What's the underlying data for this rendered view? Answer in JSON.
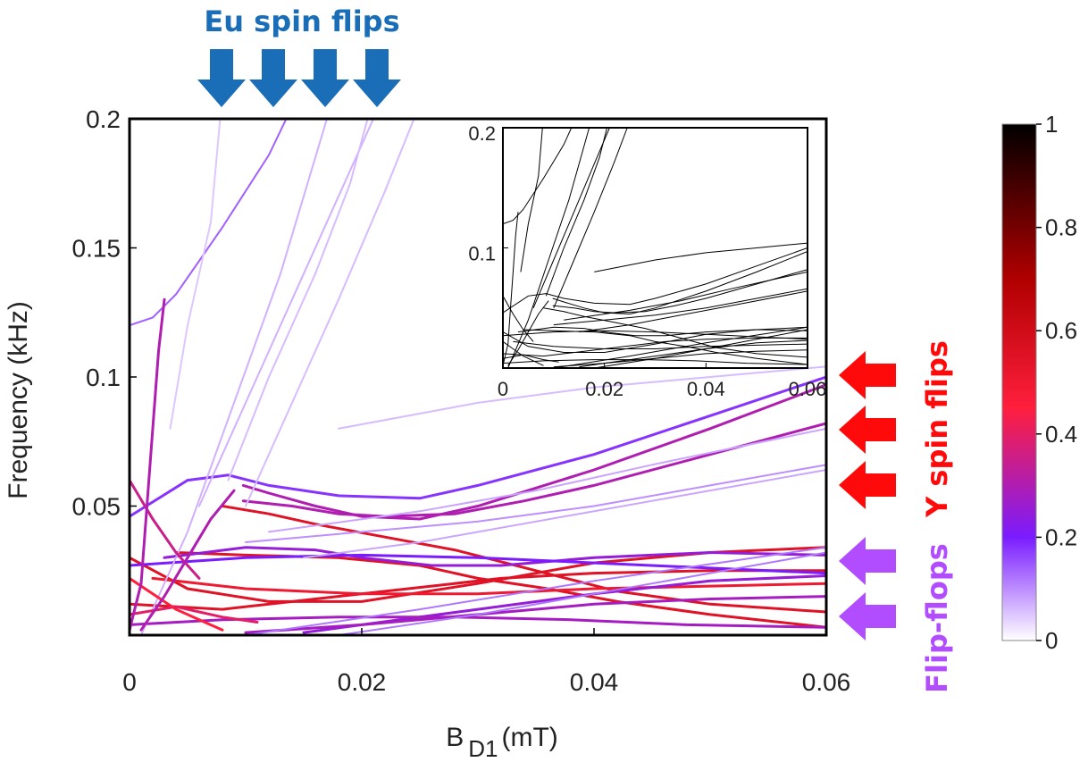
{
  "chart_data": {
    "type": "line",
    "xlabel": "B",
    "xlabel_sub": "D1",
    "xlabel_unit": "(mT)",
    "ylabel": "Frequency (kHz)",
    "xlim": [
      0,
      0.06
    ],
    "ylim": [
      0,
      0.2
    ],
    "x_ticks": [
      "0",
      "0.02",
      "0.04",
      "0.06"
    ],
    "y_ticks": [
      "0.05",
      "0.1",
      "0.15",
      "0.2"
    ],
    "colorbar": {
      "ticks": [
        "0",
        "0.2",
        "0.4",
        "0.6",
        "0.8",
        "1"
      ],
      "colors": [
        "#ffffff",
        "#7a1cff",
        "#ff1f3d",
        "#b00000",
        "#000000"
      ]
    },
    "annotations": {
      "eu": {
        "text": "Eu spin flips",
        "color": "#1a6eb8",
        "arrow_count": 4
      },
      "y": {
        "text": "Y spin flips",
        "color": "#ff0a0a",
        "arrow_count": 3
      },
      "ff": {
        "text": "Flip-flops",
        "color": "#b14dff",
        "arrow_count": 2
      }
    },
    "series": [
      {
        "weight": 0.3,
        "points": [
          [
            0.0098,
            0.058
          ],
          [
            0.012,
            0.055
          ],
          [
            0.016,
            0.05
          ],
          [
            0.02,
            0.046
          ],
          [
            0.025,
            0.045
          ],
          [
            0.03,
            0.05
          ],
          [
            0.035,
            0.057
          ],
          [
            0.04,
            0.064
          ],
          [
            0.05,
            0.08
          ],
          [
            0.06,
            0.097
          ]
        ]
      },
      {
        "weight": 0.3,
        "points": [
          [
            0.0098,
            0.052
          ],
          [
            0.014,
            0.05
          ],
          [
            0.018,
            0.047
          ],
          [
            0.022,
            0.046
          ],
          [
            0.028,
            0.047
          ],
          [
            0.034,
            0.052
          ],
          [
            0.04,
            0.058
          ],
          [
            0.05,
            0.07
          ],
          [
            0.06,
            0.082
          ]
        ]
      },
      {
        "weight": 0.18,
        "points": [
          [
            0.0,
            0.046
          ],
          [
            0.005,
            0.06
          ],
          [
            0.0085,
            0.062
          ],
          [
            0.012,
            0.058
          ],
          [
            0.018,
            0.054
          ],
          [
            0.025,
            0.053
          ],
          [
            0.03,
            0.058
          ],
          [
            0.04,
            0.07
          ],
          [
            0.05,
            0.085
          ],
          [
            0.06,
            0.1
          ]
        ]
      },
      {
        "weight": 0.55,
        "points": [
          [
            0.008,
            0.05
          ],
          [
            0.012,
            0.047
          ],
          [
            0.016,
            0.043
          ],
          [
            0.022,
            0.038
          ],
          [
            0.028,
            0.033
          ],
          [
            0.035,
            0.025
          ],
          [
            0.042,
            0.017
          ],
          [
            0.05,
            0.012
          ],
          [
            0.06,
            0.009
          ]
        ]
      },
      {
        "weight": 0.55,
        "points": [
          [
            0.004,
            0.032
          ],
          [
            0.01,
            0.031
          ],
          [
            0.018,
            0.03
          ],
          [
            0.025,
            0.027
          ],
          [
            0.03,
            0.022
          ],
          [
            0.036,
            0.018
          ],
          [
            0.042,
            0.013
          ],
          [
            0.05,
            0.008
          ],
          [
            0.06,
            0.003
          ]
        ]
      },
      {
        "weight": 0.55,
        "points": [
          [
            0.0,
            0.03
          ],
          [
            0.005,
            0.018
          ],
          [
            0.012,
            0.013
          ],
          [
            0.02,
            0.013
          ],
          [
            0.03,
            0.02
          ],
          [
            0.04,
            0.028
          ],
          [
            0.05,
            0.032
          ],
          [
            0.06,
            0.034
          ]
        ]
      },
      {
        "weight": 0.55,
        "points": [
          [
            0.0,
            0.012
          ],
          [
            0.008,
            0.01
          ],
          [
            0.016,
            0.014
          ],
          [
            0.024,
            0.018
          ],
          [
            0.032,
            0.022
          ],
          [
            0.04,
            0.024
          ],
          [
            0.05,
            0.025
          ],
          [
            0.06,
            0.025
          ]
        ]
      },
      {
        "weight": 0.5,
        "points": [
          [
            0.002,
            0.022
          ],
          [
            0.01,
            0.018
          ],
          [
            0.02,
            0.016
          ],
          [
            0.03,
            0.016
          ],
          [
            0.04,
            0.018
          ],
          [
            0.05,
            0.019
          ],
          [
            0.06,
            0.02
          ]
        ]
      },
      {
        "weight": 0.25,
        "points": [
          [
            0.003,
            0.03
          ],
          [
            0.01,
            0.034
          ],
          [
            0.016,
            0.033
          ],
          [
            0.02,
            0.03
          ],
          [
            0.026,
            0.027
          ],
          [
            0.032,
            0.027
          ],
          [
            0.04,
            0.03
          ],
          [
            0.05,
            0.032
          ],
          [
            0.06,
            0.031
          ]
        ]
      },
      {
        "weight": 0.25,
        "points": [
          [
            0.015,
            0.001
          ],
          [
            0.02,
            0.004
          ],
          [
            0.03,
            0.01
          ],
          [
            0.04,
            0.016
          ],
          [
            0.05,
            0.021
          ],
          [
            0.06,
            0.023
          ]
        ]
      },
      {
        "weight": 0.28,
        "points": [
          [
            0.0,
            0.004
          ],
          [
            0.008,
            0.006
          ],
          [
            0.018,
            0.007
          ],
          [
            0.028,
            0.007
          ],
          [
            0.038,
            0.006
          ],
          [
            0.048,
            0.004
          ],
          [
            0.06,
            0.003
          ]
        ]
      },
      {
        "weight": 0.28,
        "points": [
          [
            0.01,
            0.001
          ],
          [
            0.02,
            0.004
          ],
          [
            0.03,
            0.008
          ],
          [
            0.04,
            0.012
          ],
          [
            0.05,
            0.014
          ],
          [
            0.06,
            0.015
          ]
        ]
      },
      {
        "weight": 0.2,
        "points": [
          [
            0.0,
            0.027
          ],
          [
            0.01,
            0.03
          ],
          [
            0.02,
            0.031
          ],
          [
            0.03,
            0.03
          ],
          [
            0.04,
            0.028
          ],
          [
            0.05,
            0.026
          ],
          [
            0.06,
            0.024
          ]
        ]
      },
      {
        "weight": 0.12,
        "points": [
          [
            0.018,
            0.0
          ],
          [
            0.03,
            0.008
          ],
          [
            0.045,
            0.02
          ],
          [
            0.06,
            0.032
          ]
        ]
      },
      {
        "weight": 0.12,
        "points": [
          [
            0.01,
            0.0
          ],
          [
            0.025,
            0.01
          ],
          [
            0.04,
            0.021
          ],
          [
            0.06,
            0.034
          ]
        ]
      },
      {
        "weight": 0.1,
        "points": [
          [
            0.01,
            0.036
          ],
          [
            0.02,
            0.04
          ],
          [
            0.03,
            0.044
          ],
          [
            0.04,
            0.05
          ],
          [
            0.05,
            0.058
          ],
          [
            0.06,
            0.066
          ]
        ]
      },
      {
        "weight": 0.08,
        "points": [
          [
            0.012,
            0.04
          ],
          [
            0.025,
            0.048
          ],
          [
            0.035,
            0.056
          ],
          [
            0.045,
            0.066
          ],
          [
            0.06,
            0.08
          ]
        ]
      },
      {
        "weight": 0.08,
        "points": [
          [
            0.015,
            0.03
          ],
          [
            0.025,
            0.036
          ],
          [
            0.035,
            0.044
          ],
          [
            0.045,
            0.052
          ],
          [
            0.06,
            0.064
          ]
        ]
      },
      {
        "weight": 0.06,
        "points": [
          [
            0.018,
            0.08
          ],
          [
            0.03,
            0.09
          ],
          [
            0.04,
            0.096
          ],
          [
            0.05,
            0.1
          ],
          [
            0.06,
            0.104
          ]
        ]
      },
      {
        "weight": 0.14,
        "points": [
          [
            0.0,
            0.12
          ],
          [
            0.002,
            0.123
          ],
          [
            0.004,
            0.132
          ],
          [
            0.006,
            0.145
          ],
          [
            0.008,
            0.158
          ],
          [
            0.01,
            0.172
          ],
          [
            0.012,
            0.186
          ],
          [
            0.0135,
            0.2
          ]
        ]
      },
      {
        "weight": 0.07,
        "points": [
          [
            0.001,
            0.0
          ],
          [
            0.005,
            0.04
          ],
          [
            0.009,
            0.09
          ],
          [
            0.013,
            0.14
          ],
          [
            0.017,
            0.2
          ]
        ]
      },
      {
        "weight": 0.07,
        "points": [
          [
            0.006,
            0.05
          ],
          [
            0.01,
            0.09
          ],
          [
            0.014,
            0.13
          ],
          [
            0.018,
            0.17
          ],
          [
            0.021,
            0.2
          ]
        ]
      },
      {
        "weight": 0.06,
        "points": [
          [
            0.01,
            0.05
          ],
          [
            0.014,
            0.09
          ],
          [
            0.018,
            0.13
          ],
          [
            0.022,
            0.172
          ],
          [
            0.0245,
            0.2
          ]
        ]
      },
      {
        "weight": 0.06,
        "points": [
          [
            0.0085,
            0.06
          ],
          [
            0.012,
            0.1
          ],
          [
            0.016,
            0.14
          ],
          [
            0.019,
            0.175
          ],
          [
            0.0205,
            0.2
          ]
        ]
      },
      {
        "weight": 0.05,
        "points": [
          [
            0.0035,
            0.08
          ],
          [
            0.005,
            0.12
          ],
          [
            0.007,
            0.16
          ],
          [
            0.0078,
            0.2
          ]
        ]
      },
      {
        "weight": 0.4,
        "points": [
          [
            0.0,
            0.008
          ],
          [
            0.004,
            0.011
          ],
          [
            0.006,
            0.009
          ],
          [
            0.008,
            0.007
          ],
          [
            0.011,
            0.005
          ]
        ]
      },
      {
        "weight": 0.45,
        "points": [
          [
            0.0,
            0.022
          ],
          [
            0.002,
            0.016
          ],
          [
            0.004,
            0.01
          ],
          [
            0.006,
            0.006
          ],
          [
            0.008,
            0.002
          ]
        ]
      },
      {
        "weight": 0.35,
        "points": [
          [
            0.0,
            0.06
          ],
          [
            0.002,
            0.045
          ],
          [
            0.004,
            0.032
          ],
          [
            0.006,
            0.022
          ]
        ]
      },
      {
        "weight": 0.3,
        "points": [
          [
            0.001,
            0.002
          ],
          [
            0.003,
            0.015
          ],
          [
            0.005,
            0.03
          ],
          [
            0.007,
            0.045
          ],
          [
            0.009,
            0.056
          ]
        ]
      },
      {
        "weight": 0.3,
        "points": [
          [
            0.0,
            0.002
          ],
          [
            0.001,
            0.02
          ],
          [
            0.0015,
            0.05
          ],
          [
            0.002,
            0.08
          ],
          [
            0.0025,
            0.11
          ],
          [
            0.003,
            0.13
          ]
        ]
      }
    ],
    "inset": {
      "xlim": [
        0,
        0.06
      ],
      "ylim": [
        0,
        0.2
      ],
      "x_ticks": [
        "0",
        "0.02",
        "0.04",
        "0.06"
      ],
      "y_ticks": [
        "0.1",
        "0.2"
      ]
    }
  }
}
